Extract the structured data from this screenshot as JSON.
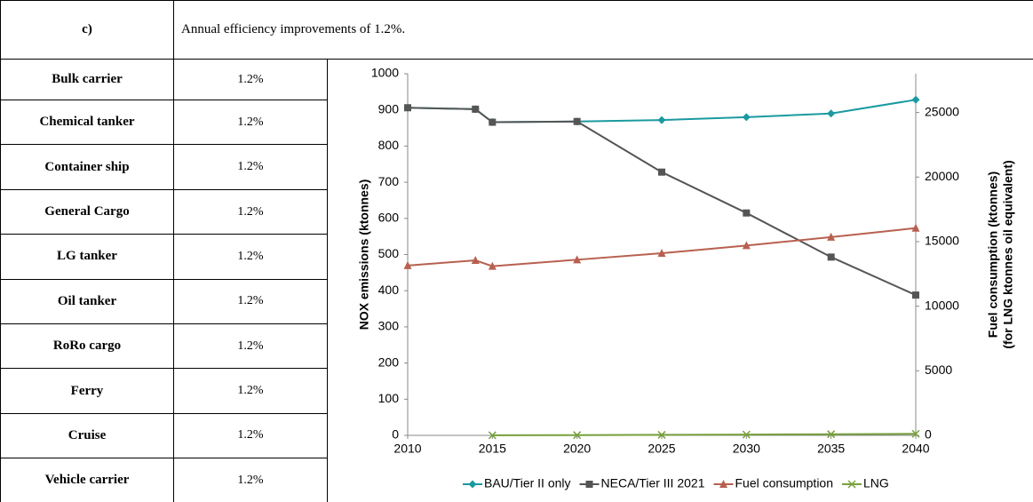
{
  "table": {
    "header": [
      "c)",
      "Annual efficiency improvements of 1.2%."
    ],
    "rows": [
      [
        "Bulk carrier",
        "1.2%"
      ],
      [
        "Chemical tanker",
        "1.2%"
      ],
      [
        "Container ship",
        "1.2%"
      ],
      [
        "General Cargo",
        "1.2%"
      ],
      [
        "LG tanker",
        "1.2%"
      ],
      [
        "Oil tanker",
        "1.2%"
      ],
      [
        "RoRo cargo",
        "1.2%"
      ],
      [
        "Ferry",
        "1.2%"
      ],
      [
        "Cruise",
        "1.2%"
      ],
      [
        "Vehicle carrier",
        "1.2%"
      ]
    ]
  },
  "chart_data": {
    "type": "line",
    "ylabel": "NOX emissions (ktonnes)",
    "y2label": [
      "Fuel consumption (ktonnes)",
      "(for LNG ktonnes oil equivalent)"
    ],
    "x": [
      2010,
      2014,
      2015,
      2020,
      2025,
      2030,
      2035,
      2040
    ],
    "xlim": [
      2010,
      2040
    ],
    "xticks": [
      2010,
      2015,
      2020,
      2025,
      2030,
      2035,
      2040
    ],
    "ylim": [
      0,
      1000
    ],
    "yticks": [
      0,
      100,
      200,
      300,
      400,
      500,
      600,
      700,
      800,
      900,
      1000
    ],
    "y2lim": [
      0,
      28000
    ],
    "y2ticks": [
      0,
      5000,
      10000,
      15000,
      20000,
      25000
    ],
    "grid": false,
    "legend": "bottom",
    "series": [
      {
        "name": "BAU/Tier II only",
        "color": "#1a9aa0",
        "marker": "diamond",
        "values": [
          906,
          902,
          866,
          868,
          872,
          880,
          890,
          928
        ]
      },
      {
        "name": "NECA/Tier III 2021",
        "color": "#555555",
        "marker": "square",
        "values": [
          906,
          902,
          866,
          868,
          728,
          615,
          493,
          388
        ]
      },
      {
        "name": "Fuel consumption",
        "color": "#b86050",
        "marker": "triangle",
        "axis": "y2",
        "values": [
          13150,
          13550,
          13100,
          13600,
          14100,
          14700,
          15350,
          16050
        ]
      },
      {
        "name": "LNG",
        "color": "#77a03c",
        "marker": "x",
        "axis": "y2",
        "values": [
          null,
          null,
          10,
          20,
          40,
          60,
          90,
          120
        ]
      }
    ]
  }
}
